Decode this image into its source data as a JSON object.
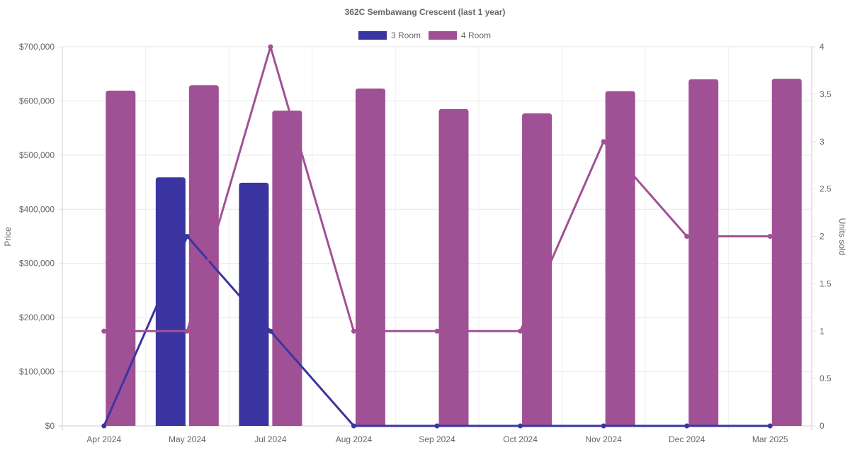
{
  "chart_data": {
    "type": "bar",
    "title": "362C Sembawang Crescent (last 1 year)",
    "categories": [
      "Apr 2024",
      "May 2024",
      "Jul 2024",
      "Aug 2024",
      "Sep 2024",
      "Oct 2024",
      "Nov 2024",
      "Dec 2024",
      "Mar 2025"
    ],
    "ylabel": "Price",
    "y2label": "Units sold",
    "ylim": [
      0,
      700000
    ],
    "y2lim": [
      0,
      4
    ],
    "yticks": [
      "$0",
      "$100,000",
      "$200,000",
      "$300,000",
      "$400,000",
      "$500,000",
      "$600,000",
      "$700,000"
    ],
    "y2ticks": [
      "0",
      "0.5",
      "1",
      "1.5",
      "2",
      "2.5",
      "3",
      "3.5",
      "4"
    ],
    "legend_position": "top",
    "grid": true,
    "series": [
      {
        "name": "3 Room",
        "color": "#3a35a0",
        "price": [
          null,
          459000,
          449000,
          null,
          null,
          null,
          null,
          null,
          null
        ],
        "units_sold": [
          0,
          2,
          1,
          0,
          0,
          0,
          0,
          0,
          0
        ]
      },
      {
        "name": "4 Room",
        "color": "#a05195",
        "price": [
          619000,
          629000,
          582000,
          623000,
          585000,
          577000,
          618000,
          640000,
          641000
        ],
        "units_sold": [
          1,
          1,
          4,
          1,
          1,
          1,
          3,
          2,
          2
        ]
      }
    ]
  }
}
